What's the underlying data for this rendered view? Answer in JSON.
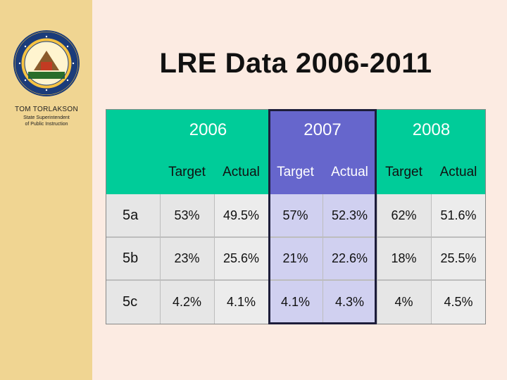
{
  "sidebar": {
    "seal_icon": "state-seal-icon",
    "org_name": "TOM TORLAKSON",
    "org_title_line1": "State Superintendent",
    "org_title_line2": "of Public Instruction"
  },
  "title": "LRE Data 2006-2011",
  "table": {
    "years": [
      "2006",
      "2007",
      "2008"
    ],
    "subheaders": [
      "Target",
      "Actual",
      "Target",
      "Actual",
      "Target",
      "Actual"
    ],
    "rows": [
      {
        "label": "5a",
        "values": [
          "53%",
          "49.5%",
          "57%",
          "52.3%",
          "62%",
          "51.6%"
        ]
      },
      {
        "label": "5b",
        "values": [
          "23%",
          "25.6%",
          "21%",
          "22.6%",
          "18%",
          "25.5%"
        ]
      },
      {
        "label": "5c",
        "values": [
          "4.2%",
          "4.1%",
          "4.1%",
          "4.3%",
          "4%",
          "4.5%"
        ]
      }
    ]
  },
  "colors": {
    "background": "#fcebe2",
    "sidebar": "#f0d592",
    "green_header": "#00cc99",
    "purple_header": "#6666cc",
    "purple_cell": "#d0d0f0",
    "grey_cell": "#e6e6e6"
  }
}
